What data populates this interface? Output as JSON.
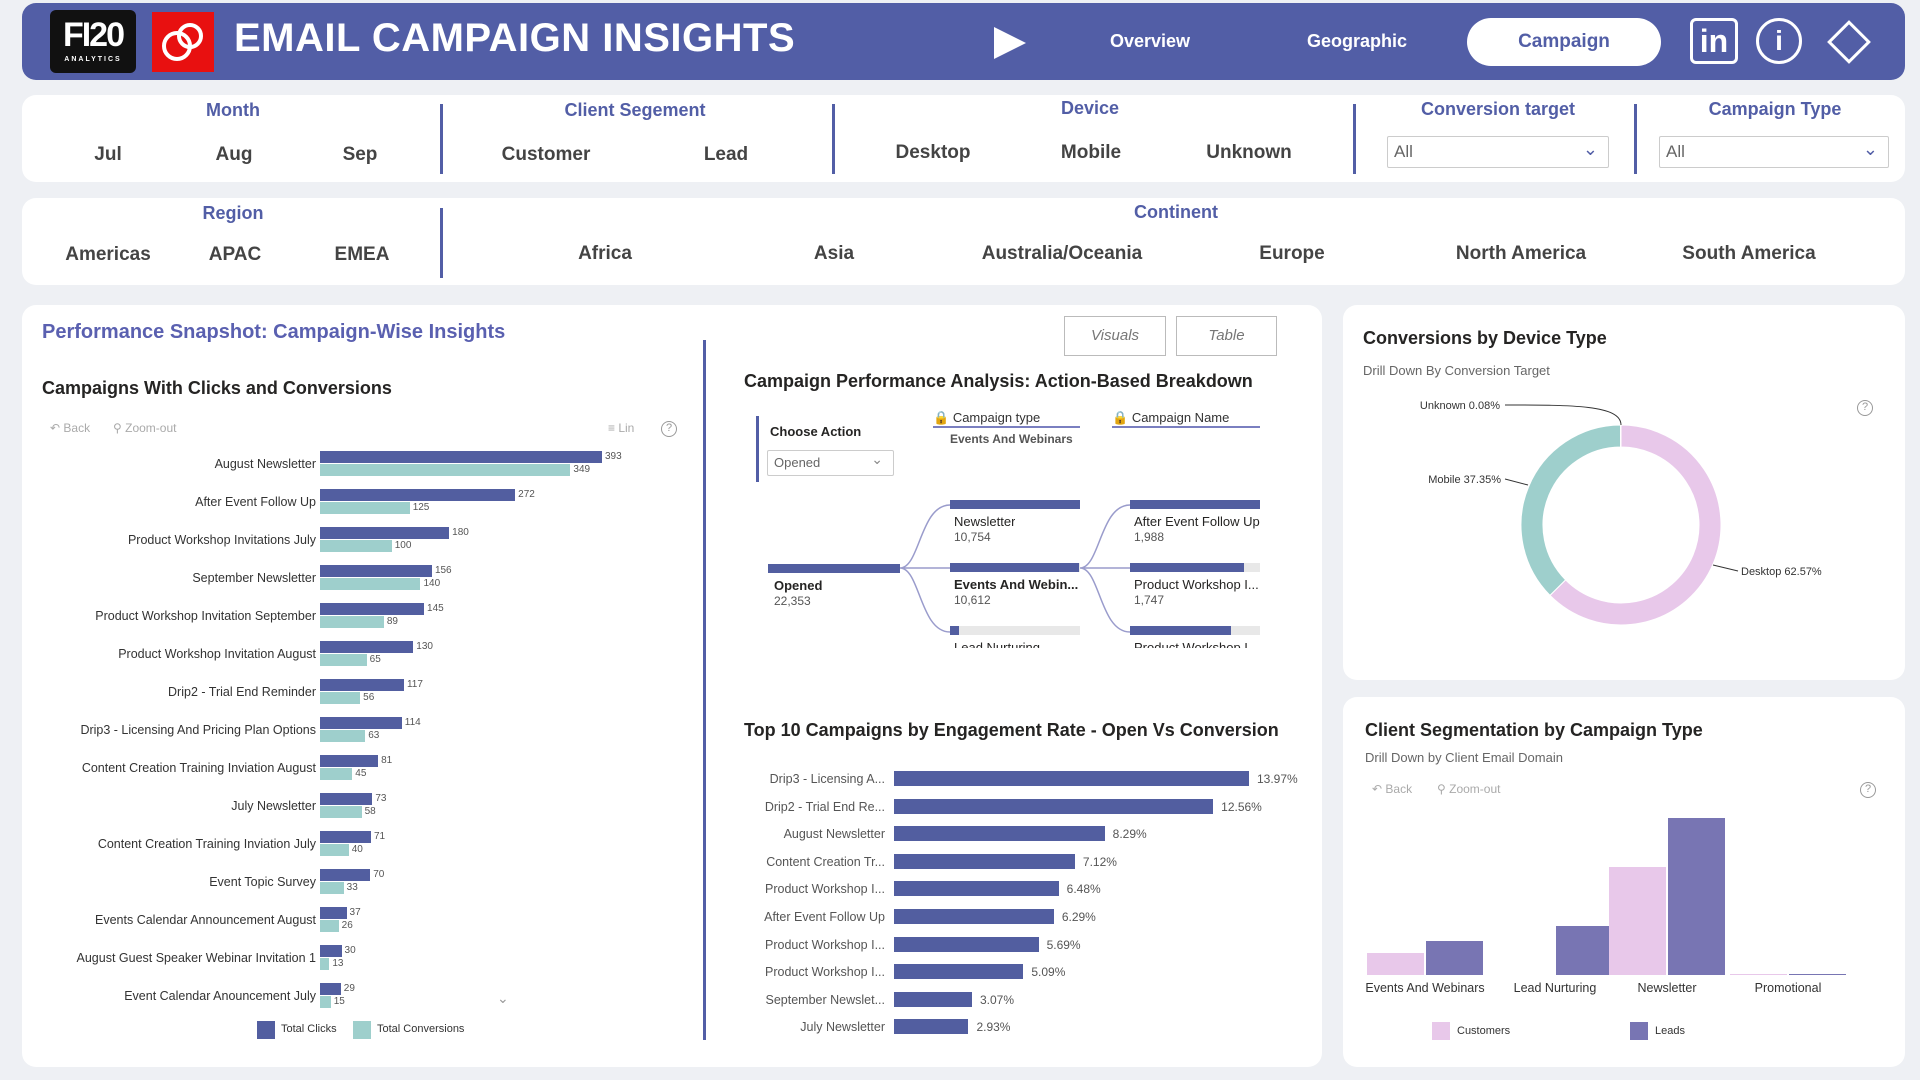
{
  "header": {
    "logo_text": "FI20",
    "logo_sub": "ANALYTICS",
    "title": "EMAIL CAMPAIGN INSIGHTS",
    "nav": [
      "Overview",
      "Geographic",
      "Campaign"
    ]
  },
  "filters": {
    "month": {
      "label": "Month",
      "items": [
        "Jul",
        "Aug",
        "Sep"
      ]
    },
    "segment": {
      "label": "Client Segement",
      "items": [
        "Customer",
        "Lead"
      ]
    },
    "device": {
      "label": "Device",
      "items": [
        "Desktop",
        "Mobile",
        "Unknown"
      ]
    },
    "conversion_target": {
      "label": "Conversion target",
      "value": "All"
    },
    "campaign_type": {
      "label": "Campaign Type",
      "value": "All"
    },
    "region": {
      "label": "Region",
      "items": [
        "Americas",
        "APAC",
        "EMEA"
      ]
    },
    "continent": {
      "label": "Continent",
      "items": [
        "Africa",
        "Asia",
        "Australia/Oceania",
        "Europe",
        "North America",
        "South America"
      ]
    }
  },
  "main": {
    "title": "Performance Snapshot: Campaign-Wise Insights",
    "toggle": [
      "Visuals",
      "Table"
    ],
    "back": "Back",
    "zoom_out": "Zoom-out",
    "lin": "Lin"
  },
  "tree": {
    "title": "Campaign Performance Analysis: Action-Based Breakdown",
    "choose_label": "Choose Action",
    "choose_value": "Opened",
    "col1": "Campaign type",
    "col1_sel": "Events And Webinars",
    "col2": "Campaign Name",
    "root": {
      "name": "Opened",
      "value": "22,353"
    },
    "level1": [
      {
        "name": "Newsletter",
        "value": "10,754",
        "frac": 1
      },
      {
        "name": "Events And Webin...",
        "value": "10,612",
        "frac": 0.99
      },
      {
        "name": "Lead Nurturing",
        "value": "",
        "frac": 0.07
      }
    ],
    "level2": [
      {
        "name": "After Event Follow Up",
        "value": "1,988",
        "frac": 1
      },
      {
        "name": "Product Workshop I...",
        "value": "1,747",
        "frac": 0.88
      },
      {
        "name": "Product Workshop I",
        "value": "",
        "frac": 0.78
      }
    ]
  },
  "device": {
    "title": "Conversions by Device Type",
    "subtitle": "Drill Down By Conversion Target"
  },
  "segmentation": {
    "title": "Client Segmentation by Campaign Type",
    "subtitle": "Drill Down by Client Email Domain",
    "back": "Back",
    "zoom_out": "Zoom-out"
  },
  "chart_data": [
    {
      "type": "bar",
      "orientation": "horizontal",
      "title": "Campaigns With Clicks and Conversions",
      "categories": [
        "August Newsletter",
        "After Event Follow Up",
        "Product Workshop Invitations July",
        "September Newsletter",
        "Product Workshop Invitation September",
        "Product Workshop Invitation August",
        "Drip2 - Trial End Reminder",
        "Drip3 - Licensing And Pricing Plan Options",
        "Content Creation Training Inviation August",
        "July Newsletter",
        "Content Creation Training Inviation July",
        "Event Topic Survey",
        "Events Calendar Announcement August",
        "August Guest Speaker Webinar Invitation 1",
        "Event Calendar Anouncement July"
      ],
      "series": [
        {
          "name": "Total Clicks",
          "color": "#525ea0",
          "values": [
            393,
            272,
            180,
            156,
            145,
            130,
            117,
            114,
            81,
            73,
            71,
            70,
            37,
            30,
            29
          ]
        },
        {
          "name": "Total Conversions",
          "color": "#9ecfcc",
          "values": [
            349,
            125,
            100,
            140,
            89,
            65,
            56,
            63,
            45,
            58,
            40,
            33,
            26,
            13,
            15
          ]
        }
      ],
      "legend": "bottom"
    },
    {
      "type": "bar",
      "orientation": "horizontal",
      "title": "Top 10 Campaigns by Engagement Rate - Open Vs Conversion",
      "categories": [
        "Drip3 - Licensing A...",
        "Drip2 - Trial End Re...",
        "August Newsletter",
        "Content Creation Tr...",
        "Product Workshop I...",
        "After Event Follow Up",
        "Product Workshop I...",
        "Product Workshop I...",
        "September Newslet...",
        "July Newsletter"
      ],
      "values": [
        13.97,
        12.56,
        8.29,
        7.12,
        6.48,
        6.29,
        5.69,
        5.09,
        3.07,
        2.93
      ],
      "labels": [
        "13.97%",
        "12.56%",
        "8.29%",
        "7.12%",
        "6.48%",
        "6.29%",
        "5.69%",
        "5.09%",
        "3.07%",
        "2.93%"
      ],
      "color": "#525ea0"
    },
    {
      "type": "pie",
      "donut": true,
      "title": "Conversions by Device Type",
      "slices": [
        {
          "name": "Desktop",
          "value": 62.57,
          "label": "Desktop 62.57%",
          "color": "#e8c8ea"
        },
        {
          "name": "Mobile",
          "value": 37.35,
          "label": "Mobile 37.35%",
          "color": "#9ecfcc"
        },
        {
          "name": "Unknown",
          "value": 0.08,
          "label": "Unknown 0.08%",
          "color": "#555"
        }
      ]
    },
    {
      "type": "bar",
      "title": "Client Segmentation by Campaign Type",
      "categories": [
        "Events And Webinars",
        "Lead Nurturing",
        "Newsletter",
        "Promotional"
      ],
      "series": [
        {
          "name": "Customers",
          "color": "#e8c8ea",
          "values": [
            22,
            0,
            108,
            1
          ]
        },
        {
          "name": "Leads",
          "color": "#7875b3",
          "values": [
            34,
            49,
            157,
            1
          ]
        }
      ],
      "legend": "bottom"
    }
  ]
}
